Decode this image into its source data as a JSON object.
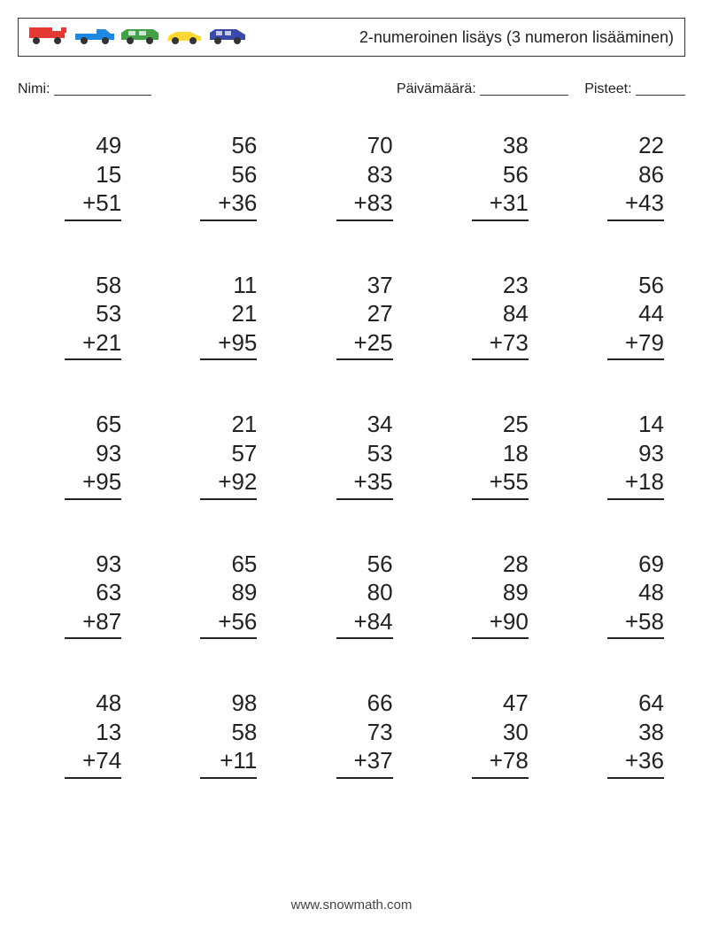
{
  "header": {
    "title": "2-numeroinen lisäys (3 numeron lisääminen)",
    "vehicles": [
      {
        "type": "truck",
        "body": "#e53935",
        "trailer": "#e53935",
        "wheel": "#333333"
      },
      {
        "type": "pickup",
        "body": "#1e88e5",
        "wheel": "#333333"
      },
      {
        "type": "wagon",
        "body": "#43a047",
        "wheel": "#333333"
      },
      {
        "type": "sedan",
        "body": "#fdd835",
        "wheel": "#333333"
      },
      {
        "type": "suv",
        "body": "#3949ab",
        "wheel": "#333333"
      }
    ]
  },
  "info": {
    "name_label": "Nimi:",
    "date_label": "Päivämäärä:",
    "score_label": "Pisteet:",
    "name_blank_width": 110,
    "date_blank_width": 100,
    "score_blank_width": 56
  },
  "operator": "+",
  "problems": [
    [
      {
        "a": 49,
        "b": 15,
        "c": 51
      },
      {
        "a": 56,
        "b": 56,
        "c": 36
      },
      {
        "a": 70,
        "b": 83,
        "c": 83
      },
      {
        "a": 38,
        "b": 56,
        "c": 31
      },
      {
        "a": 22,
        "b": 86,
        "c": 43
      }
    ],
    [
      {
        "a": 58,
        "b": 53,
        "c": 21
      },
      {
        "a": 11,
        "b": 21,
        "c": 95
      },
      {
        "a": 37,
        "b": 27,
        "c": 25
      },
      {
        "a": 23,
        "b": 84,
        "c": 73
      },
      {
        "a": 56,
        "b": 44,
        "c": 79
      }
    ],
    [
      {
        "a": 65,
        "b": 93,
        "c": 95
      },
      {
        "a": 21,
        "b": 57,
        "c": 92
      },
      {
        "a": 34,
        "b": 53,
        "c": 35
      },
      {
        "a": 25,
        "b": 18,
        "c": 55
      },
      {
        "a": 14,
        "b": 93,
        "c": 18
      }
    ],
    [
      {
        "a": 93,
        "b": 63,
        "c": 87
      },
      {
        "a": 65,
        "b": 89,
        "c": 56
      },
      {
        "a": 56,
        "b": 80,
        "c": 84
      },
      {
        "a": 28,
        "b": 89,
        "c": 90
      },
      {
        "a": 69,
        "b": 48,
        "c": 58
      }
    ],
    [
      {
        "a": 48,
        "b": 13,
        "c": 74
      },
      {
        "a": 98,
        "b": 58,
        "c": 11
      },
      {
        "a": 66,
        "b": 73,
        "c": 37
      },
      {
        "a": 47,
        "b": 30,
        "c": 78
      },
      {
        "a": 64,
        "b": 38,
        "c": 36
      }
    ]
  ],
  "footer": {
    "text": "www.snowmath.com"
  }
}
